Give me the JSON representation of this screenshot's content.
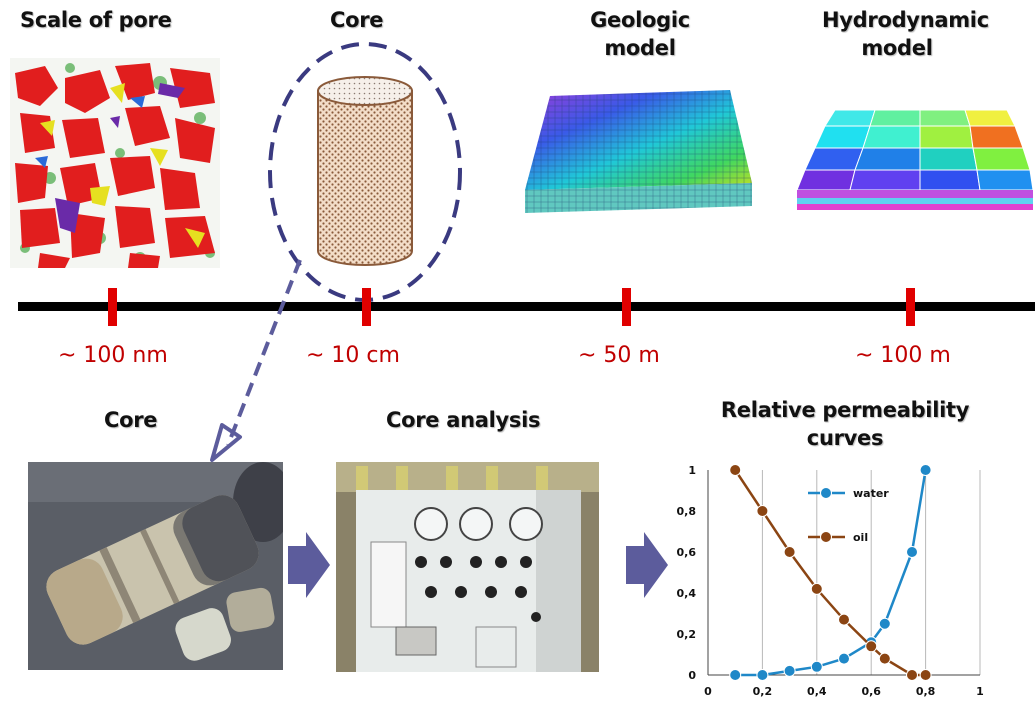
{
  "headings": {
    "pore": "Scale of pore",
    "core_top": "Core",
    "geologic_line1": "Geologic",
    "geologic_line2": "model",
    "hydro_line1": "Hydrodynamic",
    "hydro_line2": "model",
    "core_bottom": "Core",
    "core_analysis": "Core analysis",
    "relperm_line1": "Relative permeability",
    "relperm_line2": "curves"
  },
  "scale_labels": [
    "~ 100 nm",
    "~ 10 cm",
    "~ 50 m",
    "~ 100 m"
  ],
  "colors": {
    "tick": "#e00000",
    "label": "#c00000",
    "arrow": "#5c5c9c",
    "dashed": "#3a3a80",
    "water": "#1f88c8",
    "oil": "#8b4513"
  },
  "chart_data": {
    "type": "line",
    "xlim": [
      0,
      1
    ],
    "ylim": [
      0,
      1
    ],
    "x_ticks": [
      "0",
      "0,2",
      "0,4",
      "0,6",
      "0,8",
      "1"
    ],
    "y_ticks": [
      "0",
      "0,2",
      "0,4",
      "0,6",
      "0,8",
      "1"
    ],
    "grid": "vertical",
    "series": [
      {
        "name": "water",
        "x": [
          0.1,
          0.2,
          0.3,
          0.4,
          0.5,
          0.6,
          0.65,
          0.75,
          0.8
        ],
        "y": [
          0.0,
          0.0,
          0.02,
          0.04,
          0.08,
          0.16,
          0.25,
          0.6,
          1.0
        ]
      },
      {
        "name": "oil",
        "x": [
          0.1,
          0.2,
          0.3,
          0.4,
          0.5,
          0.6,
          0.65,
          0.75,
          0.8
        ],
        "y": [
          1.0,
          0.8,
          0.6,
          0.42,
          0.27,
          0.14,
          0.08,
          0.0,
          0.0
        ]
      }
    ]
  }
}
